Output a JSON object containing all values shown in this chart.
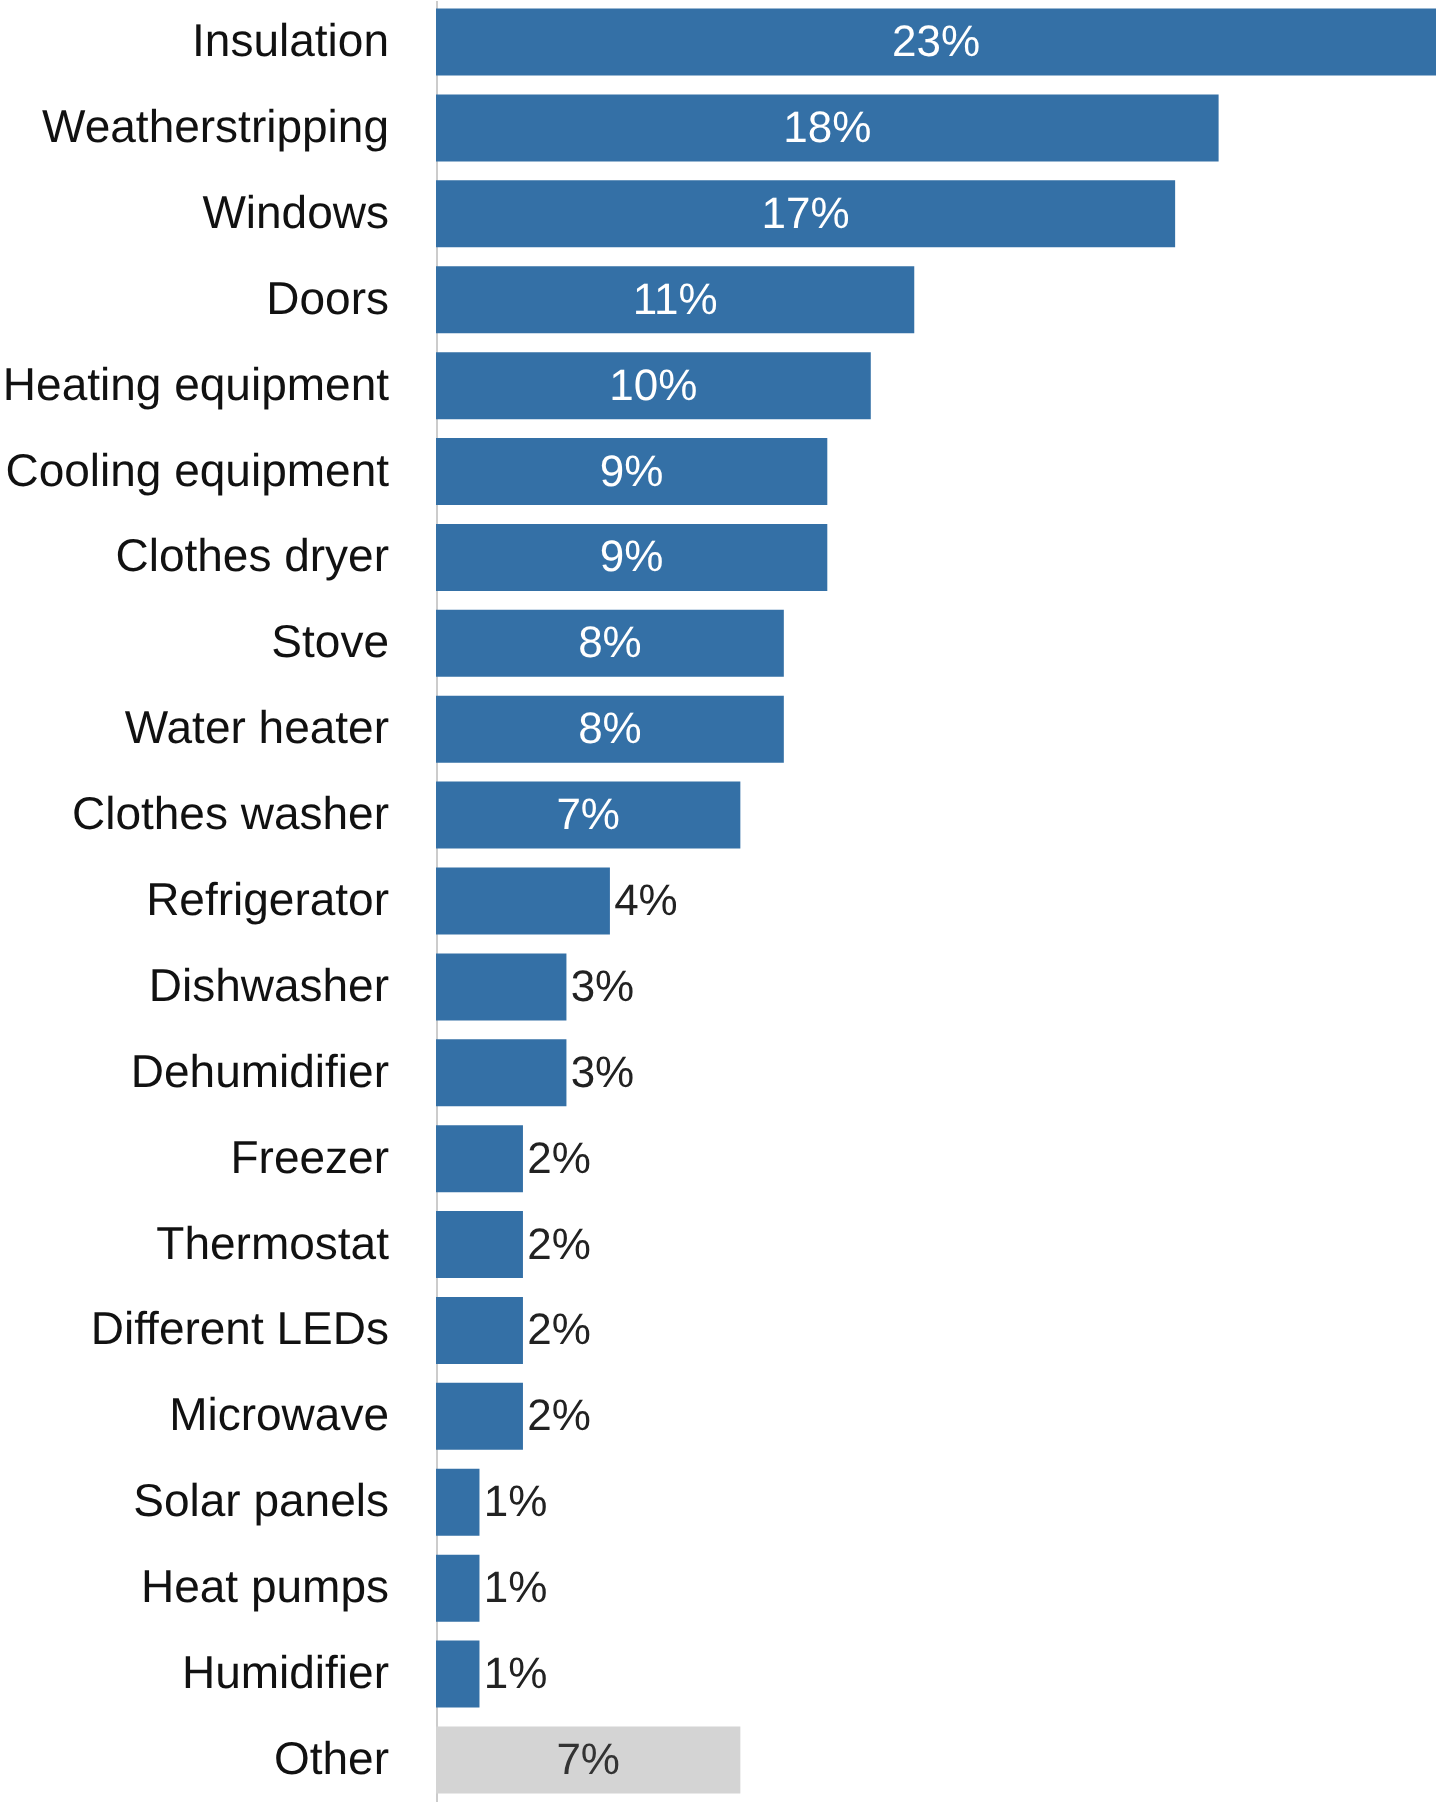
{
  "chart_data": {
    "type": "bar",
    "orientation": "horizontal",
    "categories": [
      "Insulation",
      "Weatherstripping",
      "Windows",
      "Doors",
      "Heating equipment",
      "Cooling equipment",
      "Clothes dryer",
      "Stove",
      "Water heater",
      "Clothes washer",
      "Refrigerator",
      "Dishwasher",
      "Dehumidifier",
      "Freezer",
      "Thermostat",
      "Different LEDs",
      "Microwave",
      "Solar panels",
      "Heat pumps",
      "Humidifier",
      "Other"
    ],
    "values": [
      23,
      18,
      17,
      11,
      10,
      9,
      9,
      8,
      8,
      7,
      4,
      3,
      3,
      2,
      2,
      2,
      2,
      1,
      1,
      1,
      7
    ],
    "value_labels": [
      "23%",
      "18%",
      "17%",
      "11%",
      "10%",
      "9%",
      "9%",
      "8%",
      "8%",
      "7%",
      "4%",
      "3%",
      "3%",
      "2%",
      "2%",
      "2%",
      "2%",
      "1%",
      "1%",
      "1%",
      "7%"
    ],
    "colors": [
      "#3470a6",
      "#3470a6",
      "#3470a6",
      "#3470a6",
      "#3470a6",
      "#3470a6",
      "#3470a6",
      "#3470a6",
      "#3470a6",
      "#3470a6",
      "#3470a6",
      "#3470a6",
      "#3470a6",
      "#3470a6",
      "#3470a6",
      "#3470a6",
      "#3470a6",
      "#3470a6",
      "#3470a6",
      "#3470a6",
      "#d4d4d4"
    ]
  }
}
